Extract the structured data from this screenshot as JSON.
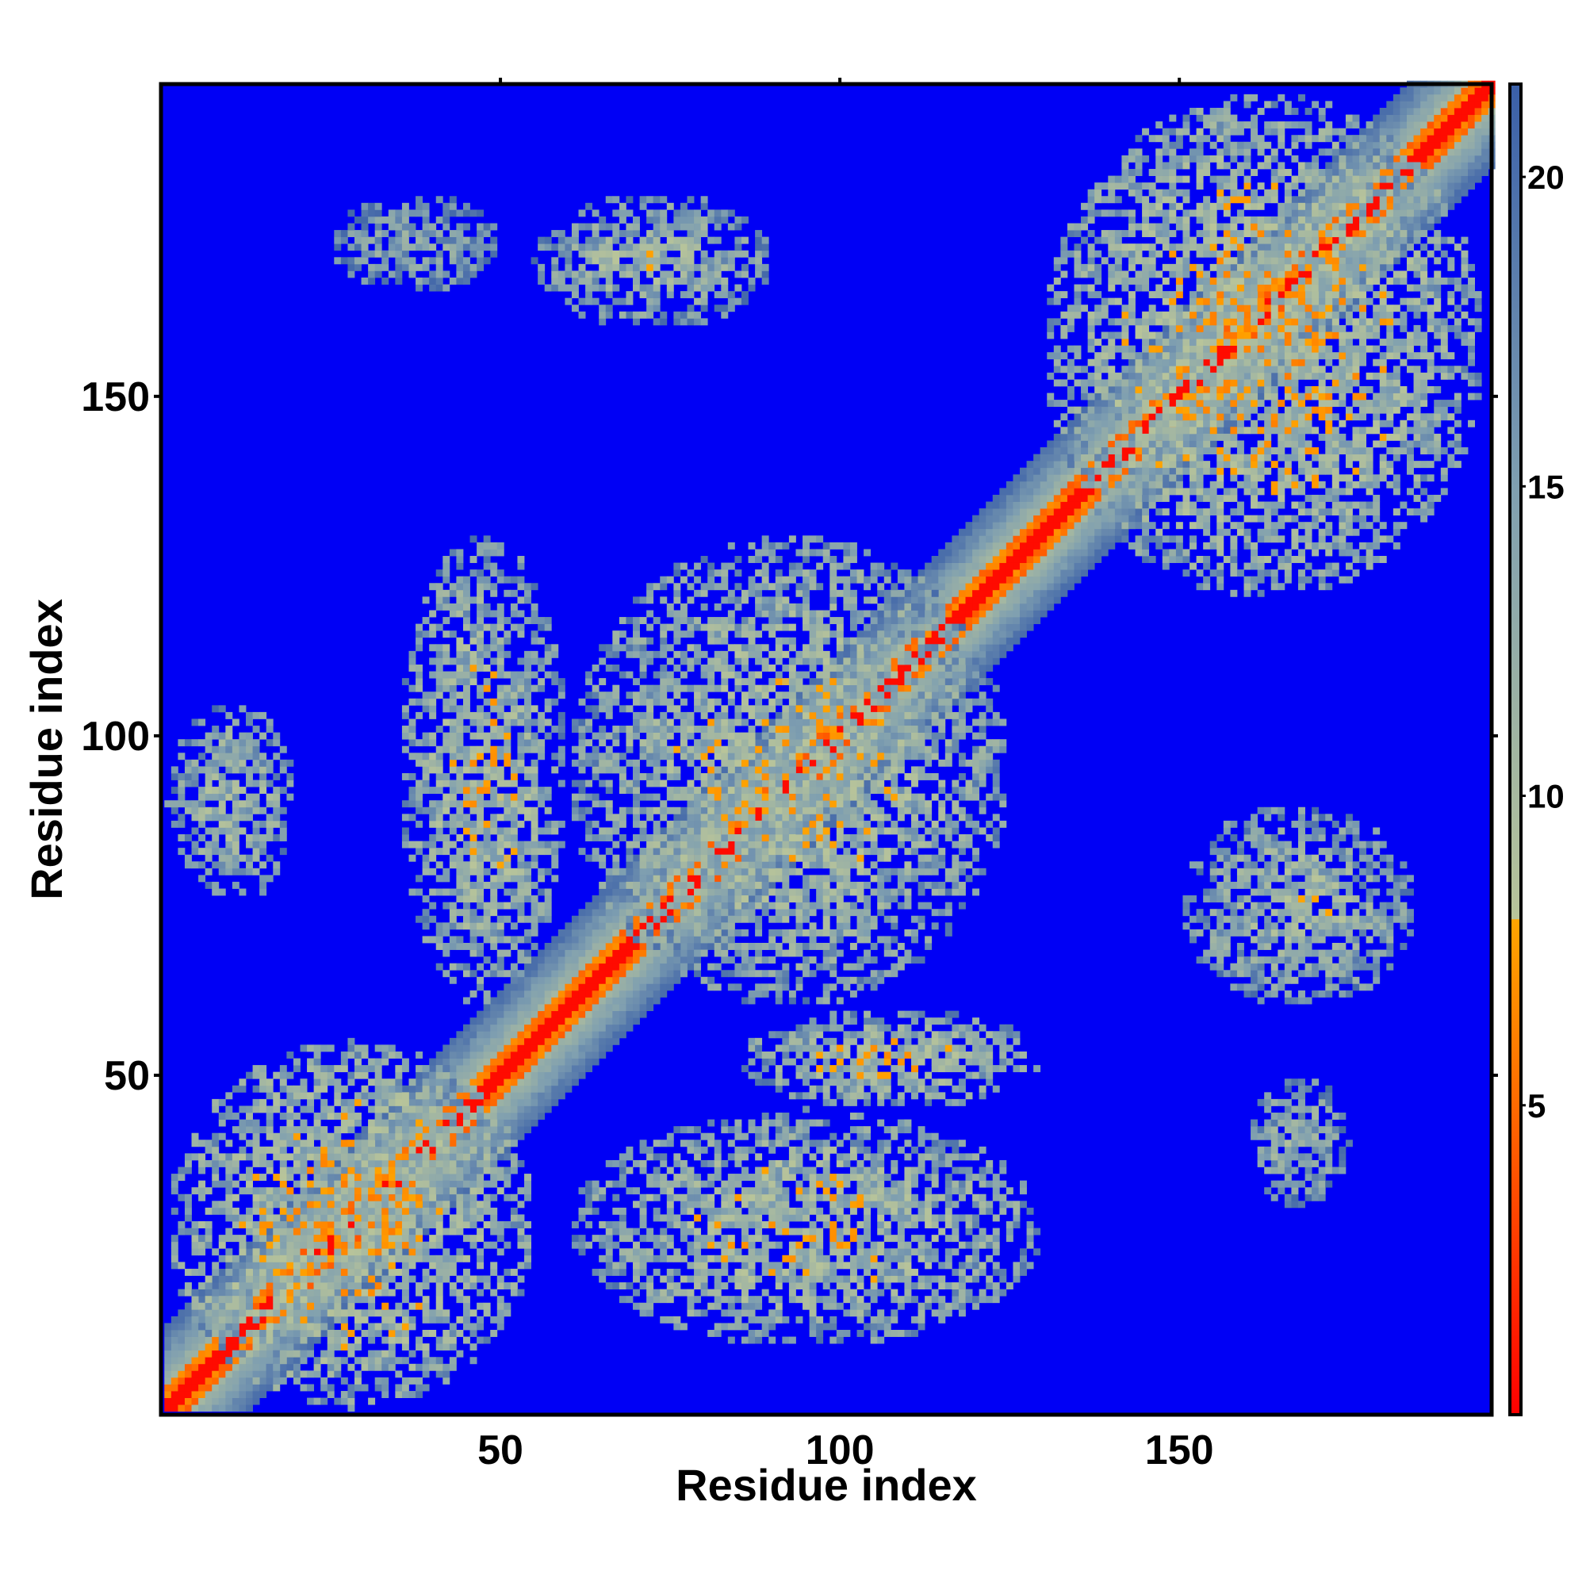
{
  "chart_data": {
    "type": "heatmap",
    "title": "",
    "xlabel": "Residue index",
    "ylabel": "Residue index",
    "n_residues": 196,
    "x_range": [
      1,
      196
    ],
    "y_range": [
      1,
      196
    ],
    "x_ticks": [
      50,
      100,
      150
    ],
    "y_ticks": [
      50,
      100,
      150
    ],
    "colorbar": {
      "ticks": [
        5,
        10,
        15,
        20
      ],
      "range": [
        0,
        21.5
      ],
      "stops": [
        {
          "value": 0,
          "color": "#ff0000"
        },
        {
          "value": 5,
          "color": "#ff6a00"
        },
        {
          "value": 8,
          "color": "#ffa500"
        },
        {
          "value": 8.01,
          "color": "#b8c49a"
        },
        {
          "value": 15,
          "color": "#7f9fb0"
        },
        {
          "value": 21.5,
          "color": "#3a5fa8"
        }
      ],
      "background_color": "#0000f5"
    },
    "diagonal": {
      "value": 0,
      "band_half_width": 12
    },
    "contact_clusters": [
      {
        "x": [
          1,
          55
        ],
        "y": [
          1,
          55
        ],
        "mean_distance": 10
      },
      {
        "x": [
          35,
          60
        ],
        "y": [
          60,
          130
        ],
        "mean_distance": 11
      },
      {
        "x": [
          60,
          125
        ],
        "y": [
          60,
          130
        ],
        "mean_distance": 11
      },
      {
        "x": [
          1,
          20
        ],
        "y": [
          75,
          105
        ],
        "mean_distance": 12
      },
      {
        "x": [
          25,
          50
        ],
        "y": [
          165,
          180
        ],
        "mean_distance": 14
      },
      {
        "x": [
          55,
          90
        ],
        "y": [
          160,
          180
        ],
        "mean_distance": 12
      },
      {
        "x": [
          60,
          130
        ],
        "y": [
          10,
          45
        ],
        "mean_distance": 11
      },
      {
        "x": [
          85,
          130
        ],
        "y": [
          45,
          60
        ],
        "mean_distance": 11
      },
      {
        "x": [
          130,
          195
        ],
        "y": [
          120,
          195
        ],
        "mean_distance": 10
      },
      {
        "x": [
          150,
          185
        ],
        "y": [
          60,
          90
        ],
        "mean_distance": 12
      },
      {
        "x": [
          160,
          175
        ],
        "y": [
          30,
          50
        ],
        "mean_distance": 13
      }
    ]
  }
}
